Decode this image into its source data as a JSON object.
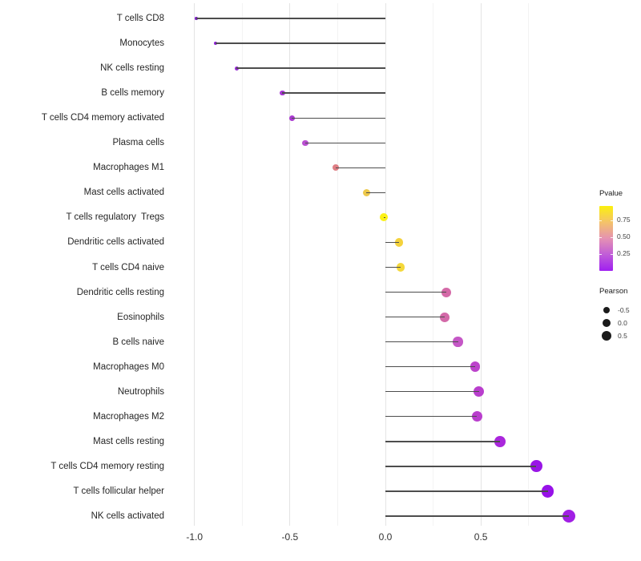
{
  "figure": {
    "background": "#ffffff"
  },
  "chart_data": {
    "type": "scatter",
    "subtype": "lollipop",
    "orientation": "horizontal",
    "title": "",
    "xlabel": "",
    "ylabel": "",
    "grid": "vertical-only",
    "baseline": 0.0,
    "stick_color": "#4d4d4d",
    "x_axis": {
      "ticks": [
        "-1.0",
        "-0.5",
        "0.0",
        "0.5"
      ],
      "tick_values": [
        -1.0,
        -0.5,
        0.0,
        0.5
      ],
      "minor_tick_values": [
        -0.75,
        -0.25,
        0.25,
        0.75
      ],
      "range": [
        -1.09,
        1.05
      ]
    },
    "points": [
      {
        "label": "T cells CD8",
        "pearson": -0.99,
        "color": "#7f1ec9"
      },
      {
        "label": "Monocytes",
        "pearson": -0.89,
        "color": "#8e1fd8"
      },
      {
        "label": "NK cells resting",
        "pearson": -0.78,
        "color": "#9628d4"
      },
      {
        "label": "B cells memory",
        "pearson": -0.54,
        "color": "#a636d2"
      },
      {
        "label": "T cells CD4 memory activated",
        "pearson": -0.49,
        "color": "#aa3ad1"
      },
      {
        "label": "Plasma cells",
        "pearson": -0.42,
        "color": "#b94fd1"
      },
      {
        "label": "Macrophages M1",
        "pearson": -0.26,
        "color": "#df7e84"
      },
      {
        "label": "Mast cells activated",
        "pearson": -0.1,
        "color": "#edc84a"
      },
      {
        "label": "T cells regulatory  Tregs",
        "pearson": -0.01,
        "color": "#fbf116"
      },
      {
        "label": "Dendritic cells activated",
        "pearson": 0.07,
        "color": "#f4d23c"
      },
      {
        "label": "T cells CD4 naive",
        "pearson": 0.08,
        "color": "#f4d83a"
      },
      {
        "label": "Dendritic cells resting",
        "pearson": 0.32,
        "color": "#d469a7"
      },
      {
        "label": "Eosinophils",
        "pearson": 0.31,
        "color": "#d369a8"
      },
      {
        "label": "B cells naive",
        "pearson": 0.38,
        "color": "#c557c6"
      },
      {
        "label": "Macrophages M0",
        "pearson": 0.47,
        "color": "#bc43cb"
      },
      {
        "label": "Neutrophils",
        "pearson": 0.49,
        "color": "#b93ecd"
      },
      {
        "label": "Macrophages M2",
        "pearson": 0.48,
        "color": "#b93ecd"
      },
      {
        "label": "Mast cells resting",
        "pearson": 0.6,
        "color": "#aa27dc"
      },
      {
        "label": "T cells CD4 memory resting",
        "pearson": 0.79,
        "color": "#9916e6"
      },
      {
        "label": "T cells follicular helper",
        "pearson": 0.85,
        "color": "#9712e8"
      },
      {
        "label": "NK cells activated",
        "pearson": 0.96,
        "color": "#a11fe4"
      }
    ]
  },
  "legend_pvalue": {
    "title": "Pvalue",
    "ticks": [
      "0.75",
      "0.50",
      "0.25"
    ],
    "tick_values": [
      0.75,
      0.5,
      0.25
    ],
    "value_range": [
      0.0,
      0.964
    ],
    "gradient_top_to_bottom": [
      "#fbf00d",
      "#f4c369",
      "#e592b2",
      "#c05cd8",
      "#a01ff0"
    ]
  },
  "legend_pearson": {
    "title": "Pearson",
    "dot_color": "#1a1a1a",
    "entries": [
      {
        "label": "-0.5",
        "value": -0.5
      },
      {
        "label": "0.0",
        "value": 0.0
      },
      {
        "label": "0.5",
        "value": 0.5
      }
    ]
  }
}
